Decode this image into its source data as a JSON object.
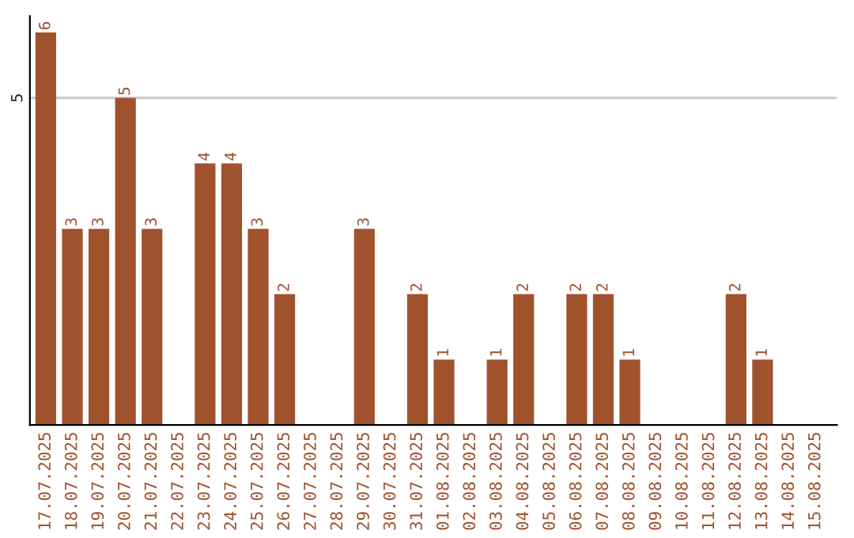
{
  "chart_data": {
    "type": "bar",
    "categories": [
      "17.07.2025",
      "18.07.2025",
      "19.07.2025",
      "20.07.2025",
      "21.07.2025",
      "22.07.2025",
      "23.07.2025",
      "24.07.2025",
      "25.07.2025",
      "26.07.2025",
      "27.07.2025",
      "28.07.2025",
      "29.07.2025",
      "30.07.2025",
      "31.07.2025",
      "01.08.2025",
      "02.08.2025",
      "03.08.2025",
      "04.08.2025",
      "05.08.2025",
      "06.08.2025",
      "07.08.2025",
      "08.08.2025",
      "09.08.2025",
      "10.08.2025",
      "11.08.2025",
      "12.08.2025",
      "13.08.2025",
      "14.08.2025",
      "15.08.2025"
    ],
    "values": [
      6,
      3,
      3,
      5,
      3,
      0,
      4,
      4,
      3,
      2,
      0,
      0,
      3,
      0,
      2,
      1,
      0,
      1,
      2,
      0,
      2,
      2,
      1,
      0,
      0,
      0,
      2,
      1,
      0,
      0
    ],
    "value_labels": [
      "6",
      "3",
      "3",
      "5",
      "3",
      null,
      "4",
      "4",
      "3",
      "2",
      null,
      null,
      "3",
      null,
      "2",
      "1",
      null,
      "1",
      "2",
      null,
      "2",
      "2",
      "1",
      null,
      null,
      null,
      "2",
      "1",
      null,
      null
    ],
    "color": "#a0522d",
    "ylim": [
      0,
      6.25
    ],
    "yticks": [
      5
    ],
    "grid": "y"
  }
}
